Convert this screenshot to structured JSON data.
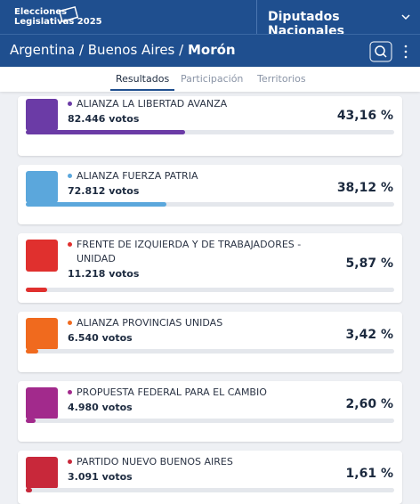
{
  "header": {
    "logo_line1": "Elecciones",
    "logo_line2": "Legislativas 2025",
    "election": "Diputados Nacionales"
  },
  "breadcrumb": {
    "country": "Argentina",
    "province": "Buenos Aires",
    "district": "Morón"
  },
  "tabs": [
    "Resultados",
    "Participación",
    "Territorios"
  ],
  "items": [
    {
      "name": "ALIANZA LA LIBERTAD AVANZA",
      "votes": "82.446 votos",
      "percent": 43.16,
      "percent_label": "43,16 %",
      "color": "#6b3ba6"
    },
    {
      "name": "ALIANZA FUERZA PATRIA",
      "votes": "72.812 votos",
      "percent": 38.12,
      "percent_label": "38,12 %",
      "color": "#5ba7dc"
    },
    {
      "name": "FRENTE DE IZQUIERDA Y DE TRABAJADORES - UNIDAD",
      "votes": "11.218 votos",
      "percent": 5.87,
      "percent_label": "5,87 %",
      "color": "#e0302e"
    },
    {
      "name": "ALIANZA PROVINCIAS UNIDAS",
      "votes": "6.540 votos",
      "percent": 3.42,
      "percent_label": "3,42 %",
      "color": "#f06a1e"
    },
    {
      "name": "PROPUESTA FEDERAL PARA EL CAMBIO",
      "votes": "4.980 votos",
      "percent": 2.6,
      "percent_label": "2,60 %",
      "color": "#a22a8c"
    },
    {
      "name": "PARTIDO NUEVO BUENOS AIRES",
      "votes": "3.091 votos",
      "percent": 1.61,
      "percent_label": "1,61 %",
      "color": "#c8283a"
    }
  ]
}
